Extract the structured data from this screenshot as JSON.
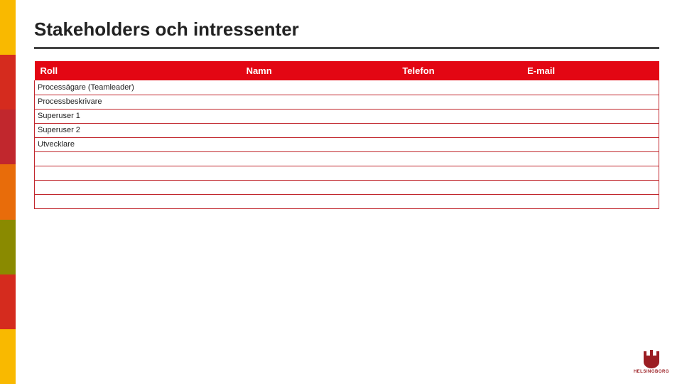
{
  "title": "Stakeholders och intressenter",
  "colors": {
    "header_row_bg": "#e30613",
    "header_text": "#ffffff",
    "row_border": "#c1272d",
    "title_rule": "#444444",
    "sidebar_segments": [
      "#f9b900",
      "#d52b1e",
      "#c1272d",
      "#e86c0a",
      "#8a8a00",
      "#d52b1e",
      "#f9b900"
    ],
    "logo_primary": "#9b1e23"
  },
  "table": {
    "columns": [
      {
        "key": "roll",
        "label": "Roll"
      },
      {
        "key": "namn",
        "label": "Namn"
      },
      {
        "key": "tel",
        "label": "Telefon"
      },
      {
        "key": "email",
        "label": "E-mail"
      }
    ],
    "rows": [
      {
        "roll": "Processägare (Teamleader)",
        "namn": "",
        "tel": "",
        "email": ""
      },
      {
        "roll": "Processbeskrivare",
        "namn": "",
        "tel": "",
        "email": ""
      },
      {
        "roll": "Superuser 1",
        "namn": "",
        "tel": "",
        "email": ""
      },
      {
        "roll": "Superuser 2",
        "namn": "",
        "tel": "",
        "email": ""
      },
      {
        "roll": "Utvecklare",
        "namn": "",
        "tel": "",
        "email": ""
      },
      {
        "roll": "",
        "namn": "",
        "tel": "",
        "email": ""
      },
      {
        "roll": "",
        "namn": "",
        "tel": "",
        "email": ""
      },
      {
        "roll": "",
        "namn": "",
        "tel": "",
        "email": ""
      },
      {
        "roll": "",
        "namn": "",
        "tel": "",
        "email": ""
      }
    ]
  },
  "logo": {
    "text": "HELSINGBORG"
  }
}
